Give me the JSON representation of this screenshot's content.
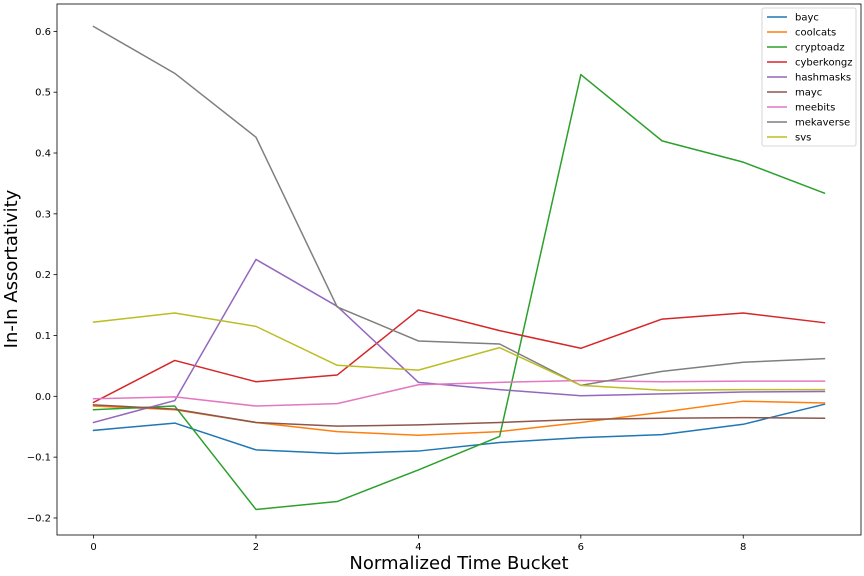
{
  "chart_data": {
    "type": "line",
    "title": "",
    "xlabel": "Normalized Time Bucket",
    "ylabel": "In-In Assortativity",
    "x": [
      0,
      1,
      2,
      3,
      4,
      5,
      6,
      7,
      8,
      9
    ],
    "xlim": [
      -0.45,
      9.45
    ],
    "ylim": [
      -0.228,
      0.645
    ],
    "xticks": [
      0,
      2,
      4,
      6,
      8
    ],
    "yticks": [
      -0.2,
      -0.1,
      0.0,
      0.1,
      0.2,
      0.3,
      0.4,
      0.5,
      0.6
    ],
    "xtick_labels": [
      "0",
      "2",
      "4",
      "6",
      "8"
    ],
    "ytick_labels": [
      "−0.2",
      "−0.1",
      "0.0",
      "0.1",
      "0.2",
      "0.3",
      "0.4",
      "0.5",
      "0.6"
    ],
    "grid": false,
    "legend_position": "top-right",
    "series": [
      {
        "name": "bayc",
        "color": "#1f77b4",
        "values": [
          -0.056,
          -0.044,
          -0.088,
          -0.094,
          -0.09,
          -0.076,
          -0.068,
          -0.063,
          -0.046,
          -0.013
        ]
      },
      {
        "name": "coolcats",
        "color": "#ff7f0e",
        "values": [
          -0.016,
          -0.022,
          -0.043,
          -0.058,
          -0.064,
          -0.058,
          -0.043,
          -0.026,
          -0.008,
          -0.011
        ]
      },
      {
        "name": "cryptoadz",
        "color": "#2ca02c",
        "values": [
          -0.022,
          -0.016,
          -0.186,
          -0.173,
          -0.121,
          -0.066,
          0.529,
          0.42,
          0.385,
          0.334
        ]
      },
      {
        "name": "cyberkongz",
        "color": "#d62728",
        "values": [
          -0.01,
          0.059,
          0.024,
          0.035,
          0.142,
          0.108,
          0.079,
          0.127,
          0.137,
          0.121
        ]
      },
      {
        "name": "hashmasks",
        "color": "#9467bd",
        "values": [
          -0.043,
          -0.007,
          0.225,
          0.148,
          0.023,
          0.011,
          0.001,
          0.004,
          0.007,
          0.008
        ]
      },
      {
        "name": "mayc",
        "color": "#8c564b",
        "values": [
          -0.014,
          -0.021,
          -0.043,
          -0.049,
          -0.047,
          -0.043,
          -0.038,
          -0.036,
          -0.035,
          -0.036
        ]
      },
      {
        "name": "meebits",
        "color": "#e377c2",
        "values": [
          -0.004,
          -0.001,
          -0.016,
          -0.012,
          0.019,
          0.023,
          0.026,
          0.024,
          0.025,
          0.025
        ]
      },
      {
        "name": "mekaverse",
        "color": "#7f7f7f",
        "values": [
          0.608,
          0.531,
          0.426,
          0.147,
          0.091,
          0.086,
          0.018,
          0.041,
          0.056,
          0.062
        ]
      },
      {
        "name": "svs",
        "color": "#bcbd22",
        "values": [
          0.122,
          0.137,
          0.115,
          0.051,
          0.043,
          0.08,
          0.018,
          0.01,
          0.011,
          0.011
        ]
      }
    ]
  }
}
